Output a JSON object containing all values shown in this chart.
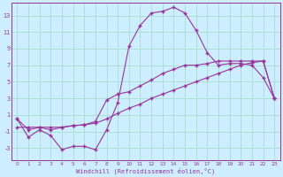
{
  "xlabel": "Windchill (Refroidissement éolien,°C)",
  "background_color": "#cceeff",
  "grid_color": "#aaddcc",
  "line_color": "#993399",
  "x_ticks": [
    0,
    1,
    2,
    3,
    4,
    5,
    6,
    7,
    8,
    9,
    10,
    11,
    12,
    13,
    14,
    15,
    16,
    17,
    18,
    19,
    20,
    21,
    22,
    23
  ],
  "y_ticks": [
    -3,
    -1,
    1,
    3,
    5,
    7,
    9,
    11,
    13
  ],
  "ylim": [
    -4.5,
    14.5
  ],
  "xlim": [
    -0.5,
    23.5
  ],
  "series1_y": [
    0.5,
    -1.7,
    -0.8,
    -1.5,
    -3.2,
    -2.8,
    -2.8,
    -3.2,
    -0.8,
    2.5,
    9.3,
    11.8,
    13.3,
    13.5,
    14.0,
    13.3,
    11.2,
    8.5,
    7.0,
    7.2,
    7.2,
    7.0,
    5.5,
    3.0
  ],
  "series2_y": [
    0.5,
    -0.8,
    -0.5,
    -0.8,
    -0.5,
    -0.3,
    -0.2,
    0.2,
    2.8,
    3.5,
    3.8,
    4.5,
    5.2,
    6.0,
    6.5,
    7.0,
    7.0,
    7.2,
    7.5,
    7.5,
    7.5,
    7.5,
    7.5,
    3.0
  ],
  "series3_y": [
    -0.5,
    -0.5,
    -0.5,
    -0.5,
    -0.5,
    -0.3,
    -0.2,
    0.0,
    0.5,
    1.2,
    1.8,
    2.3,
    3.0,
    3.5,
    4.0,
    4.5,
    5.0,
    5.5,
    6.0,
    6.5,
    7.0,
    7.3,
    7.5,
    3.0
  ]
}
